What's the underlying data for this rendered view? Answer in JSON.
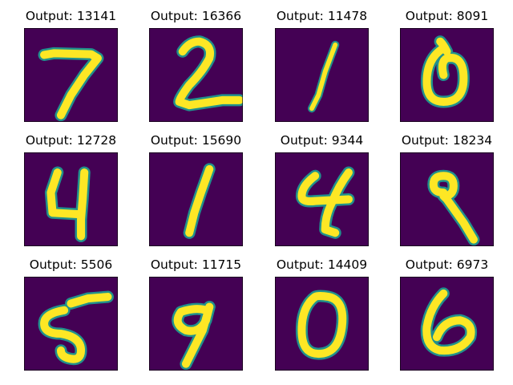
{
  "figure": {
    "title_prefix": "Output: ",
    "colors": {
      "background": "#440154",
      "stroke_edge": "#21918c",
      "stroke_core": "#fde725"
    },
    "panels": [
      {
        "label": "Output: 13141",
        "digit": "7"
      },
      {
        "label": "Output: 16366",
        "digit": "2"
      },
      {
        "label": "Output: 11478",
        "digit": "1"
      },
      {
        "label": "Output: 8091",
        "digit": "0"
      },
      {
        "label": "Output: 12728",
        "digit": "4"
      },
      {
        "label": "Output: 15690",
        "digit": "1"
      },
      {
        "label": "Output: 9344",
        "digit": "4"
      },
      {
        "label": "Output: 18234",
        "digit": "9"
      },
      {
        "label": "Output: 5506",
        "digit": "5"
      },
      {
        "label": "Output: 11715",
        "digit": "9"
      },
      {
        "label": "Output: 14409",
        "digit": "0"
      },
      {
        "label": "Output: 6973",
        "digit": "6"
      }
    ]
  }
}
